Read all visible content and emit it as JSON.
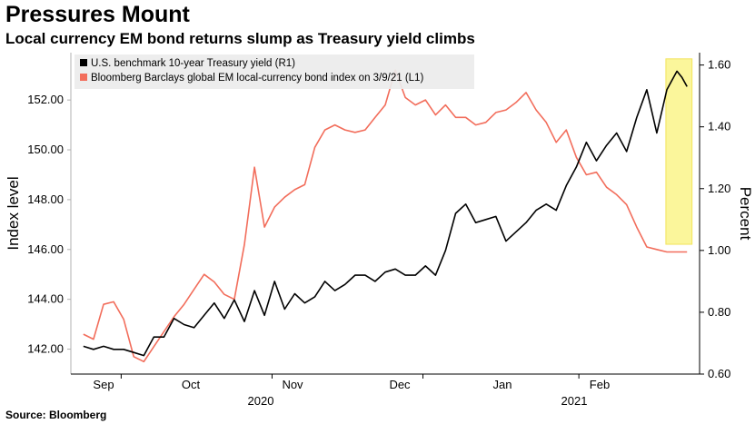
{
  "header": {
    "title": "Pressures Mount",
    "subtitle": "Local currency EM bond returns slump as Treasury yield climbs"
  },
  "footer": {
    "source": "Source: Bloomberg"
  },
  "colors": {
    "treasury": "#000000",
    "em_index": "#f26d5b",
    "highlight": "#fbf58a",
    "highlight_border": "#f0e040"
  },
  "chart_data": {
    "type": "line",
    "title": "Pressures Mount",
    "subtitle": "Local currency EM bond returns slump as Treasury yield climbs",
    "ylabel_left": "Index level",
    "ylabel_right": "Percent",
    "ylim_left": [
      141.0,
      153.9
    ],
    "ylim_right": [
      0.6,
      1.64
    ],
    "yticks_left": [
      "142.00",
      "144.00",
      "146.00",
      "148.00",
      "150.00",
      "152.00"
    ],
    "yticks_right": [
      "0.60",
      "0.80",
      "1.00",
      "1.20",
      "1.40",
      "1.60"
    ],
    "x_month_labels": [
      "Sep",
      "Oct",
      "Nov",
      "Dec",
      "Jan",
      "Feb"
    ],
    "x_year_labels": [
      "2020",
      "2021"
    ],
    "legend_position": "top-left",
    "highlight_region": {
      "x_start": 115.8,
      "x_end": 121.0,
      "y_from": 1.02,
      "y_to": 1.62,
      "axis": "right"
    },
    "series": [
      {
        "name": "U.S. benchmark 10-year Treasury yield (R1)",
        "axis": "right",
        "x": [
          0,
          2,
          4,
          6,
          8,
          10,
          12,
          14,
          16,
          18,
          20,
          22,
          24,
          26,
          28,
          30,
          32,
          34,
          36,
          38,
          40,
          42,
          44,
          46,
          48,
          50,
          52,
          54,
          56,
          58,
          60,
          62,
          64,
          66,
          68,
          70,
          72,
          74,
          76,
          78,
          80,
          82,
          84,
          86,
          88,
          90,
          92,
          94,
          96,
          98,
          100,
          102,
          104,
          106,
          108,
          110,
          112,
          114,
          116,
          118,
          119,
          120
        ],
        "y": [
          0.69,
          0.68,
          0.69,
          0.68,
          0.68,
          0.67,
          0.66,
          0.72,
          0.72,
          0.78,
          0.76,
          0.75,
          0.79,
          0.83,
          0.78,
          0.84,
          0.77,
          0.87,
          0.79,
          0.9,
          0.81,
          0.86,
          0.83,
          0.85,
          0.9,
          0.87,
          0.89,
          0.92,
          0.92,
          0.9,
          0.93,
          0.94,
          0.92,
          0.92,
          0.95,
          0.92,
          1.0,
          1.12,
          1.15,
          1.09,
          1.1,
          1.11,
          1.03,
          1.06,
          1.09,
          1.13,
          1.15,
          1.13,
          1.21,
          1.27,
          1.35,
          1.29,
          1.34,
          1.38,
          1.32,
          1.43,
          1.52,
          1.38,
          1.52,
          1.58,
          1.56,
          1.53
        ]
      },
      {
        "name": "Bloomberg Barclays global EM local-currency bond index on 3/9/21 (L1)",
        "axis": "left",
        "x": [
          0,
          2,
          4,
          6,
          8,
          10,
          12,
          14,
          16,
          18,
          20,
          22,
          24,
          26,
          28,
          30,
          32,
          34,
          36,
          38,
          40,
          42,
          44,
          46,
          48,
          50,
          52,
          54,
          56,
          58,
          60,
          62,
          64,
          66,
          68,
          70,
          72,
          74,
          76,
          78,
          80,
          82,
          84,
          86,
          88,
          90,
          92,
          94,
          96,
          98,
          100,
          102,
          104,
          106,
          108,
          110,
          112,
          114,
          116,
          118,
          119,
          120
        ],
        "y": [
          142.6,
          142.4,
          143.8,
          143.9,
          143.2,
          141.7,
          141.5,
          142.1,
          142.7,
          143.3,
          143.8,
          144.4,
          145.0,
          144.7,
          144.2,
          144.0,
          146.2,
          149.3,
          146.9,
          147.7,
          148.1,
          148.4,
          148.6,
          150.1,
          150.8,
          151.0,
          150.8,
          150.7,
          150.8,
          151.3,
          151.8,
          153.2,
          152.1,
          151.8,
          152.0,
          151.4,
          151.8,
          151.3,
          151.3,
          151.0,
          151.1,
          151.5,
          151.6,
          151.9,
          152.3,
          151.6,
          151.1,
          150.3,
          150.8,
          149.7,
          149.0,
          149.1,
          148.5,
          148.2,
          147.8,
          146.9,
          146.1,
          146.0,
          145.9,
          145.9,
          145.9,
          145.9
        ]
      }
    ]
  }
}
